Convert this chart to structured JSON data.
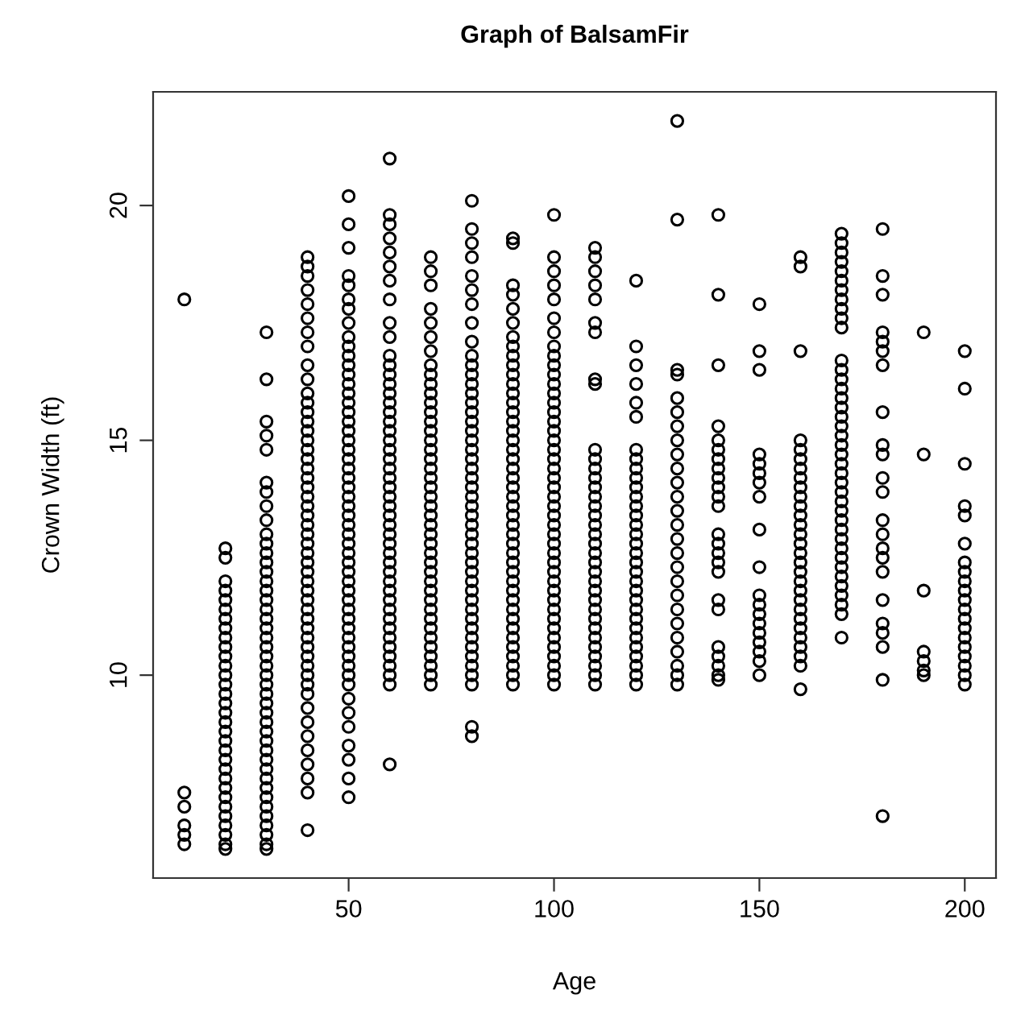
{
  "chart_data": {
    "type": "scatter",
    "title": "Graph of BalsamFir",
    "xlabel": "Age",
    "ylabel": "Crown Width (ft)",
    "xlim": [
      2.4,
      207.6
    ],
    "xticks": [
      50,
      100,
      150,
      200
    ],
    "ylim": [
      5.68,
      22.42
    ],
    "yticks": [
      10,
      15,
      20
    ],
    "marker": "circle",
    "grid": false,
    "series": [
      {
        "color": "#000000",
        "x": [
          10,
          10,
          10,
          10,
          10,
          10
        ],
        "values": [
          18.0,
          7.5,
          7.2,
          6.8,
          6.6,
          6.4
        ]
      },
      {
        "color": "#000000",
        "x": [
          20,
          20,
          20,
          20,
          20,
          20,
          20,
          20,
          20,
          20,
          20,
          20,
          20,
          20,
          20,
          20,
          20,
          20,
          20,
          20,
          20,
          20,
          20,
          20,
          20,
          20,
          20,
          20,
          20,
          20,
          20,
          20
        ],
        "values": [
          12.7,
          12.5,
          12.0,
          11.8,
          11.6,
          11.4,
          11.2,
          11.0,
          10.8,
          10.6,
          10.4,
          10.2,
          10.0,
          9.8,
          9.6,
          9.4,
          9.2,
          9.0,
          8.8,
          8.6,
          8.4,
          8.2,
          8.0,
          7.8,
          7.6,
          7.4,
          7.2,
          7.0,
          6.8,
          6.6,
          6.4,
          6.3
        ]
      },
      {
        "color": "#000000",
        "x": [
          30,
          30,
          30,
          30,
          30,
          30,
          30,
          30,
          30,
          30,
          30,
          30,
          30,
          30,
          30,
          30,
          30,
          30,
          30,
          30,
          30,
          30,
          30,
          30,
          30,
          30,
          30,
          30,
          30,
          30,
          30,
          30,
          30,
          30,
          30,
          30,
          30,
          30,
          30,
          30,
          30,
          30,
          30,
          30
        ],
        "values": [
          17.3,
          16.3,
          15.4,
          15.1,
          14.8,
          14.1,
          13.9,
          13.6,
          13.3,
          13.0,
          12.8,
          12.6,
          12.4,
          12.2,
          12.0,
          11.8,
          11.6,
          11.4,
          11.2,
          11.0,
          10.8,
          10.6,
          10.4,
          10.2,
          10.0,
          9.8,
          9.6,
          9.4,
          9.2,
          9.0,
          8.8,
          8.6,
          8.4,
          8.2,
          8.0,
          7.8,
          7.6,
          7.4,
          7.2,
          7.0,
          6.8,
          6.6,
          6.4,
          6.3
        ]
      },
      {
        "color": "#000000",
        "x": [
          40,
          40,
          40,
          40,
          40,
          40,
          40,
          40,
          40,
          40,
          40,
          40,
          40,
          40,
          40,
          40,
          40,
          40,
          40,
          40,
          40,
          40,
          40,
          40,
          40,
          40,
          40,
          40,
          40,
          40,
          40,
          40,
          40,
          40,
          40,
          40,
          40,
          40,
          40,
          40,
          40,
          40,
          40,
          40,
          40,
          40,
          40,
          40,
          40,
          40,
          40
        ],
        "values": [
          18.9,
          18.7,
          18.5,
          18.2,
          17.9,
          17.6,
          17.3,
          17.0,
          16.6,
          16.3,
          16.0,
          15.8,
          15.6,
          15.4,
          15.2,
          15.0,
          14.8,
          14.6,
          14.4,
          14.2,
          14.0,
          13.8,
          13.6,
          13.4,
          13.2,
          13.0,
          12.8,
          12.6,
          12.4,
          12.2,
          12.0,
          11.8,
          11.6,
          11.4,
          11.2,
          11.0,
          10.8,
          10.6,
          10.4,
          10.2,
          10.0,
          9.8,
          9.6,
          9.3,
          9.0,
          8.7,
          8.4,
          8.1,
          7.8,
          7.5,
          6.7
        ]
      },
      {
        "color": "#000000",
        "x": [
          50,
          50,
          50,
          50,
          50,
          50,
          50,
          50,
          50,
          50,
          50,
          50,
          50,
          50,
          50,
          50,
          50,
          50,
          50,
          50,
          50,
          50,
          50,
          50,
          50,
          50,
          50,
          50,
          50,
          50,
          50,
          50,
          50,
          50,
          50,
          50,
          50,
          50,
          50,
          50,
          50,
          50,
          50,
          50,
          50,
          50,
          50,
          50,
          50,
          50,
          50,
          50,
          50
        ],
        "values": [
          20.2,
          19.6,
          19.1,
          18.5,
          18.3,
          18.0,
          17.8,
          17.5,
          17.2,
          17.0,
          16.8,
          16.6,
          16.4,
          16.2,
          16.0,
          15.8,
          15.6,
          15.4,
          15.2,
          15.0,
          14.8,
          14.6,
          14.4,
          14.2,
          14.0,
          13.8,
          13.6,
          13.4,
          13.2,
          13.0,
          12.8,
          12.6,
          12.4,
          12.2,
          12.0,
          11.8,
          11.6,
          11.4,
          11.2,
          11.0,
          10.8,
          10.6,
          10.4,
          10.2,
          10.0,
          9.8,
          9.5,
          9.2,
          8.9,
          8.5,
          8.2,
          7.8,
          7.4
        ]
      },
      {
        "color": "#000000",
        "x": [
          60,
          60,
          60,
          60,
          60,
          60,
          60,
          60,
          60,
          60,
          60,
          60,
          60,
          60,
          60,
          60,
          60,
          60,
          60,
          60,
          60,
          60,
          60,
          60,
          60,
          60,
          60,
          60,
          60,
          60,
          60,
          60,
          60,
          60,
          60,
          60,
          60,
          60,
          60,
          60,
          60,
          60,
          60,
          60,
          60,
          60,
          60
        ],
        "values": [
          21.0,
          19.8,
          19.6,
          19.3,
          19.0,
          18.7,
          18.4,
          18.0,
          17.5,
          17.2,
          16.8,
          16.6,
          16.4,
          16.2,
          16.0,
          15.8,
          15.6,
          15.4,
          15.2,
          15.0,
          14.8,
          14.6,
          14.4,
          14.2,
          14.0,
          13.8,
          13.6,
          13.4,
          13.2,
          13.0,
          12.8,
          12.6,
          12.4,
          12.2,
          12.0,
          11.8,
          11.6,
          11.4,
          11.2,
          11.0,
          10.8,
          10.6,
          10.4,
          10.2,
          10.0,
          9.8,
          8.1
        ]
      },
      {
        "color": "#000000",
        "x": [
          70,
          70,
          70,
          70,
          70,
          70,
          70,
          70,
          70,
          70,
          70,
          70,
          70,
          70,
          70,
          70,
          70,
          70,
          70,
          70,
          70,
          70,
          70,
          70,
          70,
          70,
          70,
          70,
          70,
          70,
          70,
          70,
          70,
          70,
          70,
          70,
          70,
          70,
          70,
          70,
          70,
          70
        ],
        "values": [
          18.9,
          18.6,
          18.3,
          17.8,
          17.5,
          17.2,
          16.9,
          16.6,
          16.4,
          16.2,
          16.0,
          15.8,
          15.6,
          15.4,
          15.2,
          15.0,
          14.8,
          14.6,
          14.4,
          14.2,
          14.0,
          13.8,
          13.6,
          13.4,
          13.2,
          13.0,
          12.8,
          12.6,
          12.4,
          12.2,
          12.0,
          11.8,
          11.6,
          11.4,
          11.2,
          11.0,
          10.8,
          10.6,
          10.4,
          10.2,
          10.0,
          9.8
        ]
      },
      {
        "color": "#000000",
        "x": [
          80,
          80,
          80,
          80,
          80,
          80,
          80,
          80,
          80,
          80,
          80,
          80,
          80,
          80,
          80,
          80,
          80,
          80,
          80,
          80,
          80,
          80,
          80,
          80,
          80,
          80,
          80,
          80,
          80,
          80,
          80,
          80,
          80,
          80,
          80,
          80,
          80,
          80,
          80,
          80,
          80,
          80,
          80,
          80,
          80,
          80,
          80
        ],
        "values": [
          20.1,
          19.5,
          19.2,
          18.9,
          18.5,
          18.2,
          17.9,
          17.5,
          17.1,
          16.8,
          16.6,
          16.4,
          16.2,
          16.0,
          15.8,
          15.6,
          15.4,
          15.2,
          15.0,
          14.8,
          14.6,
          14.4,
          14.2,
          14.0,
          13.8,
          13.6,
          13.4,
          13.2,
          13.0,
          12.8,
          12.6,
          12.4,
          12.2,
          12.0,
          11.8,
          11.6,
          11.4,
          11.2,
          11.0,
          10.8,
          10.6,
          10.4,
          10.2,
          10.0,
          9.8,
          8.9,
          8.7
        ]
      },
      {
        "color": "#000000",
        "x": [
          90,
          90,
          90,
          90,
          90,
          90,
          90,
          90,
          90,
          90,
          90,
          90,
          90,
          90,
          90,
          90,
          90,
          90,
          90,
          90,
          90,
          90,
          90,
          90,
          90,
          90,
          90,
          90,
          90,
          90,
          90,
          90,
          90,
          90,
          90,
          90,
          90,
          90,
          90,
          90,
          90,
          90,
          90,
          90
        ],
        "values": [
          19.3,
          19.2,
          18.3,
          18.1,
          17.8,
          17.5,
          17.2,
          17.0,
          16.8,
          16.6,
          16.4,
          16.2,
          16.0,
          15.8,
          15.6,
          15.4,
          15.2,
          15.0,
          14.8,
          14.6,
          14.4,
          14.2,
          14.0,
          13.8,
          13.6,
          13.4,
          13.2,
          13.0,
          12.8,
          12.6,
          12.4,
          12.2,
          12.0,
          11.8,
          11.6,
          11.4,
          11.2,
          11.0,
          10.8,
          10.6,
          10.4,
          10.2,
          10.0,
          9.8
        ]
      },
      {
        "color": "#000000",
        "x": [
          100,
          100,
          100,
          100,
          100,
          100,
          100,
          100,
          100,
          100,
          100,
          100,
          100,
          100,
          100,
          100,
          100,
          100,
          100,
          100,
          100,
          100,
          100,
          100,
          100,
          100,
          100,
          100,
          100,
          100,
          100,
          100,
          100,
          100,
          100,
          100,
          100,
          100,
          100,
          100,
          100,
          100,
          100,
          100
        ],
        "values": [
          19.8,
          18.9,
          18.6,
          18.3,
          18.0,
          17.6,
          17.3,
          17.0,
          16.8,
          16.6,
          16.4,
          16.2,
          16.0,
          15.8,
          15.6,
          15.4,
          15.2,
          15.0,
          14.8,
          14.6,
          14.4,
          14.2,
          14.0,
          13.8,
          13.6,
          13.4,
          13.2,
          13.0,
          12.8,
          12.6,
          12.4,
          12.2,
          12.0,
          11.8,
          11.6,
          11.4,
          11.2,
          11.0,
          10.8,
          10.6,
          10.4,
          10.2,
          10.0,
          9.8
        ]
      },
      {
        "color": "#000000",
        "x": [
          110,
          110,
          110,
          110,
          110,
          110,
          110,
          110,
          110,
          110,
          110,
          110,
          110,
          110,
          110,
          110,
          110,
          110,
          110,
          110,
          110,
          110,
          110,
          110,
          110,
          110,
          110,
          110,
          110,
          110,
          110,
          110,
          110,
          110,
          110
        ],
        "values": [
          19.1,
          18.9,
          18.6,
          18.3,
          18.0,
          17.5,
          17.3,
          16.3,
          16.2,
          14.8,
          14.6,
          14.4,
          14.2,
          14.0,
          13.8,
          13.6,
          13.4,
          13.2,
          13.0,
          12.8,
          12.6,
          12.4,
          12.2,
          12.0,
          11.8,
          11.6,
          11.4,
          11.2,
          11.0,
          10.8,
          10.6,
          10.4,
          10.2,
          10.0,
          9.8
        ]
      },
      {
        "color": "#000000",
        "x": [
          120,
          120,
          120,
          120,
          120,
          120,
          120,
          120,
          120,
          120,
          120,
          120,
          120,
          120,
          120,
          120,
          120,
          120,
          120,
          120,
          120,
          120,
          120,
          120,
          120,
          120,
          120,
          120,
          120,
          120,
          120,
          120
        ],
        "values": [
          18.4,
          17.0,
          16.6,
          16.2,
          15.8,
          15.5,
          14.8,
          14.6,
          14.4,
          14.2,
          14.0,
          13.8,
          13.6,
          13.4,
          13.2,
          13.0,
          12.8,
          12.6,
          12.4,
          12.2,
          12.0,
          11.8,
          11.6,
          11.4,
          11.2,
          11.0,
          10.8,
          10.6,
          10.4,
          10.2,
          10.0,
          9.8
        ]
      },
      {
        "color": "#000000",
        "x": [
          130,
          130,
          130,
          130,
          130,
          130,
          130,
          130,
          130,
          130,
          130,
          130,
          130,
          130,
          130,
          130,
          130,
          130,
          130,
          130,
          130,
          130,
          130,
          130,
          130,
          130
        ],
        "values": [
          21.8,
          19.7,
          16.5,
          16.4,
          15.9,
          15.6,
          15.3,
          15.0,
          14.7,
          14.4,
          14.1,
          13.8,
          13.5,
          13.2,
          12.9,
          12.6,
          12.3,
          12.0,
          11.7,
          11.4,
          11.1,
          10.8,
          10.5,
          10.2,
          10.0,
          9.8
        ]
      },
      {
        "color": "#000000",
        "x": [
          140,
          140,
          140,
          140,
          140,
          140,
          140,
          140,
          140,
          140,
          140,
          140,
          140,
          140,
          140,
          140,
          140,
          140,
          140,
          140,
          140,
          140,
          140,
          140
        ],
        "values": [
          19.8,
          18.1,
          16.6,
          15.3,
          15.0,
          14.8,
          14.6,
          14.4,
          14.2,
          14.0,
          13.8,
          13.6,
          13.0,
          12.8,
          12.6,
          12.4,
          12.2,
          11.6,
          11.4,
          10.6,
          10.4,
          10.2,
          10.0,
          9.9
        ]
      },
      {
        "color": "#000000",
        "x": [
          150,
          150,
          150,
          150,
          150,
          150,
          150,
          150,
          150,
          150,
          150,
          150,
          150,
          150,
          150,
          150,
          150,
          150,
          150
        ],
        "values": [
          17.9,
          16.9,
          16.5,
          14.7,
          14.5,
          14.3,
          14.1,
          13.8,
          13.1,
          12.3,
          11.7,
          11.5,
          11.3,
          11.1,
          10.9,
          10.7,
          10.5,
          10.3,
          10.0
        ]
      },
      {
        "color": "#000000",
        "x": [
          160,
          160,
          160,
          160,
          160,
          160,
          160,
          160,
          160,
          160,
          160,
          160,
          160,
          160,
          160,
          160,
          160,
          160,
          160,
          160,
          160,
          160,
          160,
          160,
          160,
          160,
          160,
          160,
          160
        ],
        "values": [
          18.9,
          18.7,
          16.9,
          15.0,
          14.8,
          14.6,
          14.4,
          14.2,
          14.0,
          13.8,
          13.6,
          13.4,
          13.2,
          13.0,
          12.8,
          12.6,
          12.4,
          12.2,
          12.0,
          11.8,
          11.6,
          11.4,
          11.2,
          11.0,
          10.8,
          10.6,
          10.4,
          10.2,
          9.7
        ]
      },
      {
        "color": "#000000",
        "x": [
          170,
          170,
          170,
          170,
          170,
          170,
          170,
          170,
          170,
          170,
          170,
          170,
          170,
          170,
          170,
          170,
          170,
          170,
          170,
          170,
          170,
          170,
          170,
          170,
          170,
          170,
          170,
          170,
          170,
          170,
          170,
          170,
          170,
          170,
          170,
          170,
          170,
          170,
          170,
          170
        ],
        "values": [
          19.4,
          19.2,
          19.0,
          18.8,
          18.6,
          18.4,
          18.2,
          18.0,
          17.8,
          17.6,
          17.4,
          16.7,
          16.5,
          16.3,
          16.1,
          15.9,
          15.7,
          15.5,
          15.3,
          15.1,
          14.9,
          14.7,
          14.5,
          14.3,
          14.1,
          13.9,
          13.7,
          13.5,
          13.3,
          13.1,
          12.9,
          12.7,
          12.5,
          12.3,
          12.1,
          11.9,
          11.7,
          11.5,
          11.3,
          10.8
        ]
      },
      {
        "color": "#000000",
        "x": [
          180,
          180,
          180,
          180,
          180,
          180,
          180,
          180,
          180,
          180,
          180,
          180,
          180,
          180,
          180,
          180,
          180,
          180,
          180,
          180,
          180,
          180,
          180
        ],
        "values": [
          19.5,
          18.5,
          18.1,
          17.3,
          17.1,
          16.9,
          16.6,
          15.6,
          14.9,
          14.7,
          14.2,
          13.9,
          13.3,
          13.0,
          12.7,
          12.5,
          12.2,
          11.6,
          11.1,
          10.9,
          10.6,
          9.9,
          7.0
        ]
      },
      {
        "color": "#000000",
        "x": [
          190,
          190,
          190,
          190,
          190,
          190,
          190
        ],
        "values": [
          17.3,
          14.7,
          11.8,
          10.5,
          10.3,
          10.1,
          10.0
        ]
      },
      {
        "color": "#000000",
        "x": [
          200,
          200,
          200,
          200,
          200,
          200,
          200,
          200,
          200,
          200,
          200,
          200,
          200,
          200,
          200,
          200,
          200,
          200,
          200,
          200
        ],
        "values": [
          16.9,
          16.1,
          14.5,
          13.6,
          13.4,
          12.8,
          12.4,
          12.2,
          12.0,
          11.8,
          11.6,
          11.4,
          11.2,
          11.0,
          10.8,
          10.6,
          10.4,
          10.2,
          10.0,
          9.8
        ]
      }
    ]
  }
}
